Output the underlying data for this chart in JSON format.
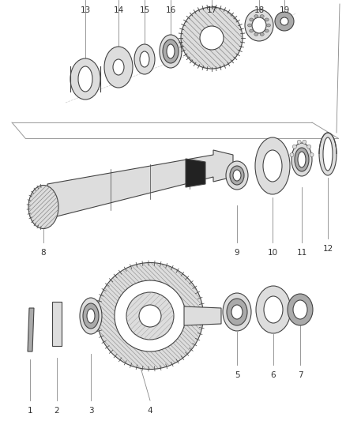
{
  "background_color": "#ffffff",
  "line_color": "#444444",
  "label_color": "#333333",
  "label_fontsize": 7.5,
  "leader_color": "#888888",
  "dark": "#555555",
  "mid": "#aaaaaa",
  "light": "#dddddd",
  "figsize": [
    4.38,
    5.33
  ],
  "dpi": 100,
  "lw": 0.8
}
